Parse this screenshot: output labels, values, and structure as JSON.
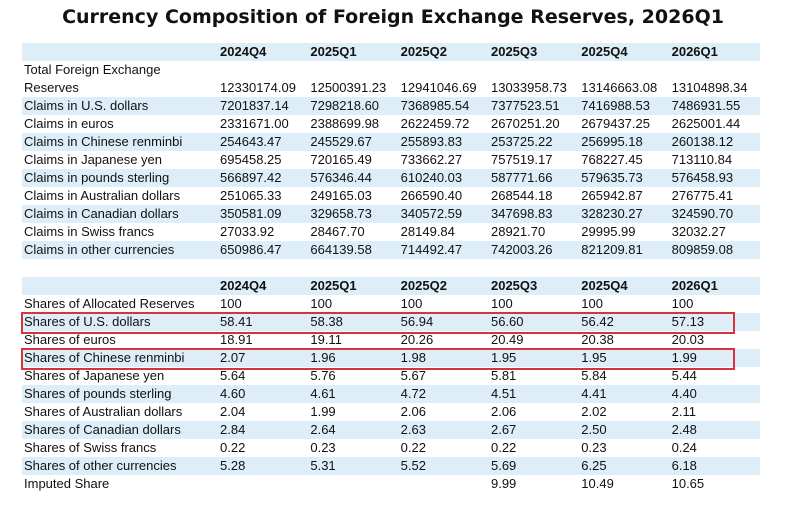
{
  "title": "Currency Composition of Foreign Exchange Reserves, 2026Q1",
  "table1": {
    "headers": [
      "",
      "2024Q4",
      "2025Q1",
      "2025Q2",
      "2025Q3",
      "2025Q4",
      "2026Q1"
    ],
    "label_first_line": "Total Foreign Exchange",
    "rows": [
      {
        "label": "Reserves",
        "values": [
          "12330174.09",
          "12500391.23",
          "12941046.69",
          "13033958.73",
          "13146663.08",
          "13104898.34"
        ]
      },
      {
        "label": "Claims in U.S. dollars",
        "values": [
          "7201837.14",
          "7298218.60",
          "7368985.54",
          "7377523.51",
          "7416988.53",
          "7486931.55"
        ]
      },
      {
        "label": "Claims in euros",
        "values": [
          "2331671.00",
          "2388699.98",
          "2622459.72",
          "2670251.20",
          "2679437.25",
          "2625001.44"
        ]
      },
      {
        "label": "Claims in Chinese renminbi",
        "values": [
          "254643.47",
          "245529.67",
          "255893.83",
          "253725.22",
          "256995.18",
          "260138.12"
        ]
      },
      {
        "label": "Claims in Japanese yen",
        "values": [
          "695458.25",
          "720165.49",
          "733662.27",
          "757519.17",
          "768227.45",
          "713110.84"
        ]
      },
      {
        "label": "Claims in pounds sterling",
        "values": [
          "566897.42",
          "576346.44",
          "610240.03",
          "587771.66",
          "579635.73",
          "576458.93"
        ]
      },
      {
        "label": "Claims in Australian dollars",
        "values": [
          "251065.33",
          "249165.03",
          "266590.40",
          "268544.18",
          "265942.87",
          "276775.41"
        ]
      },
      {
        "label": "Claims in Canadian dollars",
        "values": [
          "350581.09",
          "329658.73",
          "340572.59",
          "347698.83",
          "328230.27",
          "324590.70"
        ]
      },
      {
        "label": "Claims in Swiss francs",
        "values": [
          "27033.92",
          "28467.70",
          "28149.84",
          "28921.70",
          "29995.99",
          "32032.27"
        ]
      },
      {
        "label": "Claims in other currencies",
        "values": [
          "650986.47",
          "664139.58",
          "714492.47",
          "742003.26",
          "821209.81",
          "809859.08"
        ]
      }
    ]
  },
  "table2": {
    "headers": [
      "",
      "2024Q4",
      "2025Q1",
      "2025Q2",
      "2025Q3",
      "2025Q4",
      "2026Q1"
    ],
    "rows": [
      {
        "label": "Shares of Allocated Reserves",
        "values": [
          "100",
          "100",
          "100",
          "100",
          "100",
          "100"
        ]
      },
      {
        "label": "Shares of U.S. dollars",
        "values": [
          "58.41",
          "58.38",
          "56.94",
          "56.60",
          "56.42",
          "57.13"
        ]
      },
      {
        "label": "Shares of euros",
        "values": [
          "18.91",
          "19.11",
          "20.26",
          "20.49",
          "20.38",
          "20.03"
        ]
      },
      {
        "label": "Shares of Chinese renminbi",
        "values": [
          "2.07",
          "1.96",
          "1.98",
          "1.95",
          "1.95",
          "1.99"
        ]
      },
      {
        "label": "Shares of Japanese yen",
        "values": [
          "5.64",
          "5.76",
          "5.67",
          "5.81",
          "5.84",
          "5.44"
        ]
      },
      {
        "label": "Shares of pounds sterling",
        "values": [
          "4.60",
          "4.61",
          "4.72",
          "4.51",
          "4.41",
          "4.40"
        ]
      },
      {
        "label": "Shares of Australian dollars",
        "values": [
          "2.04",
          "1.99",
          "2.06",
          "2.06",
          "2.02",
          "2.11"
        ]
      },
      {
        "label": "Shares of Canadian dollars",
        "values": [
          "2.84",
          "2.64",
          "2.63",
          "2.67",
          "2.50",
          "2.48"
        ]
      },
      {
        "label": "Shares of Swiss francs",
        "values": [
          "0.22",
          "0.23",
          "0.22",
          "0.22",
          "0.23",
          "0.24"
        ]
      },
      {
        "label": "Shares of other currencies",
        "values": [
          "5.28",
          "5.31",
          "5.52",
          "5.69",
          "6.25",
          "6.18"
        ]
      },
      {
        "label": "Imputed Share",
        "values": [
          "",
          "",
          "",
          "9.99",
          "10.49",
          "10.65"
        ]
      }
    ]
  },
  "highlight_color": "#d8323c",
  "stripe_color": "#ddeef9"
}
